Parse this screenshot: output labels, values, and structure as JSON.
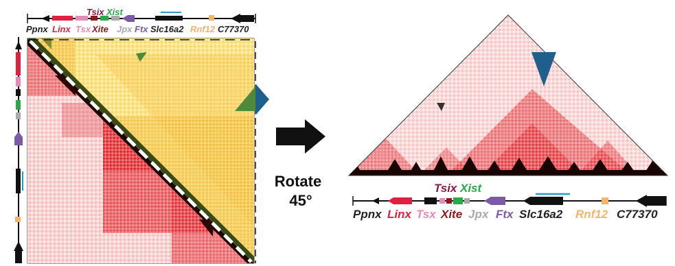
{
  "colors": {
    "hic_red": "#d7161e",
    "hic_dark": "#1a0505",
    "hic_yellow": "#fbe58a",
    "hic_yellow_dark": "#f4c64c",
    "arrowhead_blue": "#1f5f8b",
    "arrowhead_green": "#4f8a3c",
    "gene_black": "#111111",
    "diag_line": "#ffffff"
  },
  "left_panel": {
    "gene_track": {
      "top_labels": [
        {
          "text": "Tsix",
          "color": "#8b1a3a"
        },
        {
          "text": "Xist",
          "color": "#2aa84a"
        }
      ],
      "labels": [
        {
          "text": "Ppnx",
          "color": "#222222"
        },
        {
          "text": "Linx",
          "color": "#e0203f"
        },
        {
          "text": "Tsx",
          "color": "#e48ab8"
        },
        {
          "text": "Xite",
          "color": "#8b1a1a"
        },
        {
          "text": "Jpx",
          "color": "#aaaaaa"
        },
        {
          "text": "Ftx",
          "color": "#7b5aa6"
        },
        {
          "text": "Slc16a2",
          "color": "#222222"
        },
        {
          "text": "Rnf12",
          "color": "#f2b66b"
        },
        {
          "text": "C77370",
          "color": "#222222"
        }
      ]
    },
    "heatmap": {
      "lower_triangle": "red contact map",
      "upper_triangle": "yellow contact map",
      "diagonal": "white dashed line"
    }
  },
  "middle": {
    "label_line1": "Rotate",
    "label_line2": "45°",
    "arrow_icon": "right-arrow"
  },
  "right_panel": {
    "gene_track": {
      "top_labels": [
        {
          "text": "Tsix",
          "color": "#8b1a3a"
        },
        {
          "text": "Xist",
          "color": "#2aa84a"
        }
      ],
      "labels": [
        {
          "text": "Ppnx",
          "color": "#222222"
        },
        {
          "text": "Linx",
          "color": "#e0203f"
        },
        {
          "text": "Tsx",
          "color": "#e48ab8"
        },
        {
          "text": "Xite",
          "color": "#8b1a1a"
        },
        {
          "text": "Jpx",
          "color": "#aaaaaa"
        },
        {
          "text": "Ftx",
          "color": "#7b5aa6"
        },
        {
          "text": "Slc16a2",
          "color": "#222222"
        },
        {
          "text": "Rnf12",
          "color": "#f2b66b"
        },
        {
          "text": "C77370",
          "color": "#222222"
        }
      ]
    },
    "triangle_heatmap": "rotated red contact map"
  }
}
